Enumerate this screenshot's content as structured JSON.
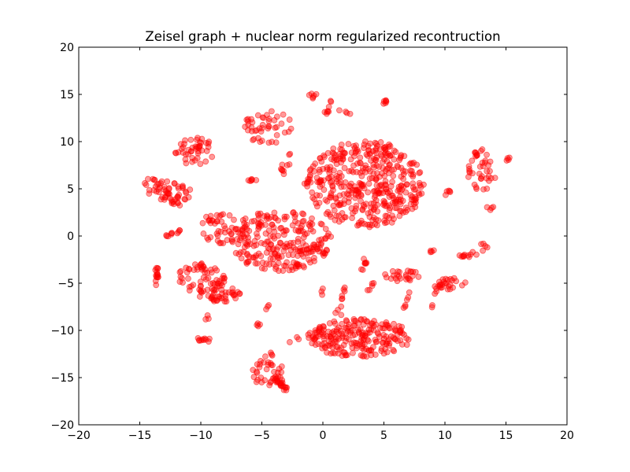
{
  "chart_data": {
    "type": "scatter",
    "title": "Zeisel graph + nuclear norm regularized recontruction",
    "xlabel": "",
    "ylabel": "",
    "xlim": [
      -20,
      20
    ],
    "ylim": [
      -20,
      20
    ],
    "x_ticks": [
      "−20",
      "−15",
      "−10",
      "−5",
      "0",
      "5",
      "10",
      "15",
      "20"
    ],
    "y_ticks": [
      "20",
      "15",
      "10",
      "5",
      "0",
      "−5",
      "−10",
      "−15",
      "−20"
    ],
    "grid": false,
    "legend": "none",
    "marker_color": "#ff0000",
    "marker_alpha": 0.4,
    "clusters": [
      {
        "type": "blob",
        "cx": 3.5,
        "cy": 5.5,
        "rx": 4.8,
        "ry": 4.6,
        "n": 420
      },
      {
        "type": "blob",
        "cx": -3.5,
        "cy": -0.5,
        "rx": 4.2,
        "ry": 3.2,
        "n": 250
      },
      {
        "type": "blob",
        "cx": 3.0,
        "cy": -10.8,
        "rx": 4.3,
        "ry": 2.0,
        "n": 220
      },
      {
        "type": "blob",
        "cx": -10.0,
        "cy": -4.5,
        "rx": 2.0,
        "ry": 1.6,
        "n": 60
      },
      {
        "type": "blob",
        "cx": -8.5,
        "cy": -6.2,
        "rx": 1.8,
        "ry": 0.9,
        "n": 40
      },
      {
        "type": "blob",
        "cx": -12.5,
        "cy": 4.5,
        "rx": 1.8,
        "ry": 1.4,
        "n": 55
      },
      {
        "type": "blob",
        "cx": -10.5,
        "cy": 9.0,
        "rx": 1.6,
        "ry": 1.5,
        "n": 45
      },
      {
        "type": "blob",
        "cx": -4.5,
        "cy": 11.5,
        "rx": 2.0,
        "ry": 1.8,
        "n": 45
      },
      {
        "type": "blob",
        "cx": -8.5,
        "cy": 0.8,
        "rx": 1.7,
        "ry": 1.6,
        "n": 40
      },
      {
        "type": "blob",
        "cx": -4.5,
        "cy": -14.5,
        "rx": 1.4,
        "ry": 1.4,
        "n": 35
      },
      {
        "type": "blob",
        "cx": 10.5,
        "cy": -5.0,
        "rx": 1.3,
        "ry": 0.7,
        "n": 25
      },
      {
        "type": "blob",
        "cx": 6.5,
        "cy": -4.2,
        "rx": 1.5,
        "ry": 0.6,
        "n": 25
      },
      {
        "type": "blob",
        "cx": 13.0,
        "cy": 7.0,
        "rx": 1.2,
        "ry": 2.2,
        "n": 40
      },
      {
        "type": "line",
        "x1": -13.8,
        "y1": -5.2,
        "x2": -13.5,
        "y2": -3.5,
        "n": 15
      },
      {
        "type": "line",
        "x1": -10.2,
        "y1": -11.0,
        "x2": -9.2,
        "y2": -11.0,
        "n": 10
      },
      {
        "type": "line",
        "x1": -12.8,
        "y1": 0.0,
        "x2": -11.6,
        "y2": 0.6,
        "n": 10
      },
      {
        "type": "line",
        "x1": -14.8,
        "y1": 5.5,
        "x2": -13.8,
        "y2": 6.0,
        "n": 6
      },
      {
        "type": "line",
        "x1": -4.0,
        "y1": -15.0,
        "x2": -3.0,
        "y2": -16.2,
        "n": 20
      },
      {
        "type": "line",
        "x1": -1.0,
        "y1": 14.9,
        "x2": -0.4,
        "y2": 14.6,
        "n": 6
      },
      {
        "type": "line",
        "x1": 0.3,
        "y1": 13.0,
        "x2": 0.6,
        "y2": 14.2,
        "n": 8
      },
      {
        "type": "line",
        "x1": 5.0,
        "y1": 14.2,
        "x2": 5.3,
        "y2": 14.5,
        "n": 6
      },
      {
        "type": "line",
        "x1": 1.0,
        "y1": 13.2,
        "x2": 2.4,
        "y2": 13.0,
        "n": 4
      },
      {
        "type": "line",
        "x1": -6.4,
        "y1": 5.6,
        "x2": -5.2,
        "y2": 6.2,
        "n": 6
      },
      {
        "type": "line",
        "x1": -3.5,
        "y1": 6.5,
        "x2": -2.5,
        "y2": 9.0,
        "n": 10
      },
      {
        "type": "line",
        "x1": -1.5,
        "y1": 5.3,
        "x2": -1.0,
        "y2": 5.8,
        "n": 4
      },
      {
        "type": "line",
        "x1": 1.3,
        "y1": -8.5,
        "x2": 1.8,
        "y2": -5.0,
        "n": 10
      },
      {
        "type": "line",
        "x1": 3.1,
        "y1": -4.0,
        "x2": 3.8,
        "y2": -2.0,
        "n": 8
      },
      {
        "type": "line",
        "x1": 3.6,
        "y1": -6.0,
        "x2": 4.1,
        "y2": -4.8,
        "n": 5
      },
      {
        "type": "line",
        "x1": 6.7,
        "y1": -7.8,
        "x2": 7.0,
        "y2": -6.0,
        "n": 6
      },
      {
        "type": "line",
        "x1": 8.9,
        "y1": -7.8,
        "x2": 9.3,
        "y2": -5.0,
        "n": 6
      },
      {
        "type": "line",
        "x1": 11.2,
        "y1": -2.2,
        "x2": 13.4,
        "y2": -1.6,
        "n": 12
      },
      {
        "type": "line",
        "x1": 13.2,
        "y1": -0.7,
        "x2": 13.3,
        "y2": -1.2,
        "n": 4
      },
      {
        "type": "line",
        "x1": 8.8,
        "y1": -1.8,
        "x2": 9.2,
        "y2": -1.4,
        "n": 4
      },
      {
        "type": "line",
        "x1": 10.0,
        "y1": 4.2,
        "x2": 10.4,
        "y2": 4.8,
        "n": 5
      },
      {
        "type": "line",
        "x1": 15.0,
        "y1": 8.0,
        "x2": 15.2,
        "y2": 8.4,
        "n": 4
      },
      {
        "type": "line",
        "x1": 13.7,
        "y1": 2.8,
        "x2": 13.9,
        "y2": 3.4,
        "n": 4
      },
      {
        "type": "line",
        "x1": -4.6,
        "y1": -13.0,
        "x2": -4.2,
        "y2": -12.4,
        "n": 4
      },
      {
        "type": "line",
        "x1": -9.6,
        "y1": -8.8,
        "x2": -9.4,
        "y2": -8.4,
        "n": 3
      },
      {
        "type": "line",
        "x1": -5.4,
        "y1": -9.6,
        "x2": -5.0,
        "y2": -9.2,
        "n": 4
      },
      {
        "type": "line",
        "x1": -4.8,
        "y1": -7.6,
        "x2": -4.4,
        "y2": -7.2,
        "n": 3
      },
      {
        "type": "line",
        "x1": -2.4,
        "y1": -11.5,
        "x2": -2.0,
        "y2": -10.8,
        "n": 3
      },
      {
        "type": "line",
        "x1": -0.2,
        "y1": -6.2,
        "x2": 0.0,
        "y2": -5.6,
        "n": 3
      }
    ]
  }
}
